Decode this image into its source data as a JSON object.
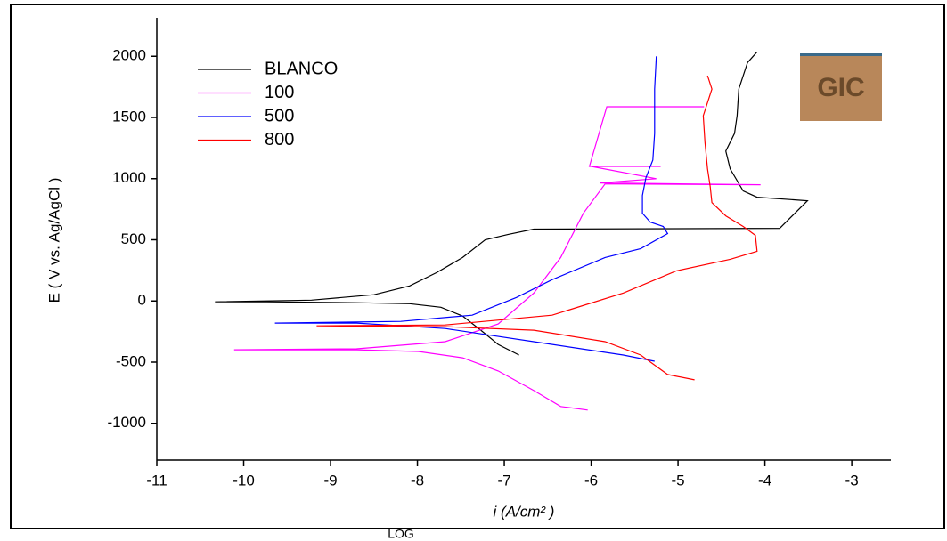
{
  "chart_data": {
    "type": "line",
    "xlabel": "i (A/cm² )",
    "ylabel": "E ( V vs. Ag/AgCl )",
    "footer": "LOG",
    "logo": "GIC",
    "xlim": [
      -11,
      -2.55
    ],
    "ylim": [
      -1300,
      2300
    ],
    "xticks": [
      -11,
      -10,
      -9,
      -8,
      -7,
      -6,
      -5,
      -4,
      -3
    ],
    "yticks": [
      -1000,
      -500,
      0,
      500,
      1000,
      1500,
      2000
    ],
    "legend": "upper left",
    "series": [
      {
        "name": "BLANCO",
        "color": "#000000",
        "x": [
          -6.83,
          -7.07,
          -7.27,
          -7.48,
          -7.73,
          -8.09,
          -8.7,
          -9.73,
          -10.33,
          -9.22,
          -8.5,
          -8.09,
          -7.78,
          -7.48,
          -7.22,
          -6.96,
          -6.66,
          -3.83,
          -3.51,
          -4.09,
          -4.25,
          -4.4,
          -4.45,
          -4.35,
          -4.32,
          -4.3,
          -4.2,
          -4.09
        ],
        "values": [
          -442,
          -355,
          -239,
          -123,
          -51,
          -22,
          -14,
          -7,
          -7,
          7,
          51,
          123,
          232,
          355,
          500,
          543,
          587,
          594,
          819,
          848,
          900,
          1080,
          1225,
          1370,
          1515,
          1732,
          1949,
          2036
        ]
      },
      {
        "name": "100",
        "color": "#ff00ff",
        "x": [
          -6.04,
          -6.35,
          -6.66,
          -7.07,
          -7.48,
          -7.99,
          -8.7,
          -10.11,
          -8.7,
          -7.68,
          -7.07,
          -6.66,
          -6.35,
          -6.09,
          -5.84,
          -4.05,
          -5.9,
          -5.25,
          -6.0,
          -5.2,
          -6.02,
          -5.82,
          -4.7
        ],
        "values": [
          -891,
          -862,
          -732,
          -572,
          -464,
          -413,
          -399,
          -399,
          -391,
          -333,
          -188,
          65,
          355,
          717,
          957,
          950,
          965,
          1000,
          1100,
          1100,
          1100,
          1587,
          1587
        ]
      },
      {
        "name": "500",
        "color": "#0000ff",
        "x": [
          -5.27,
          -5.63,
          -6.66,
          -7.68,
          -8.7,
          -9.64,
          -8.19,
          -7.37,
          -6.86,
          -6.45,
          -5.84,
          -5.43,
          -5.12,
          -5.17,
          -5.32,
          -5.41,
          -5.41,
          -5.37,
          -5.29,
          -5.27,
          -5.27,
          -5.25
        ],
        "values": [
          -493,
          -442,
          -333,
          -225,
          -181,
          -181,
          -167,
          -116,
          29,
          174,
          355,
          428,
          551,
          609,
          645,
          717,
          862,
          1007,
          1152,
          1370,
          1732,
          2000
        ]
      },
      {
        "name": "800",
        "color": "#ff0000",
        "x": [
          -4.81,
          -5.12,
          -5.43,
          -5.84,
          -6.66,
          -7.68,
          -9.16,
          -7.68,
          -6.45,
          -5.63,
          -5.02,
          -4.4,
          -4.09,
          -4.11,
          -4.25,
          -4.45,
          -4.61,
          -4.63,
          -4.66,
          -4.69,
          -4.71,
          -4.61,
          -4.66
        ],
        "values": [
          -645,
          -601,
          -442,
          -333,
          -239,
          -210,
          -203,
          -196,
          -116,
          65,
          246,
          341,
          406,
          536,
          609,
          696,
          804,
          935,
          1080,
          1297,
          1514,
          1732,
          1841
        ]
      }
    ]
  }
}
